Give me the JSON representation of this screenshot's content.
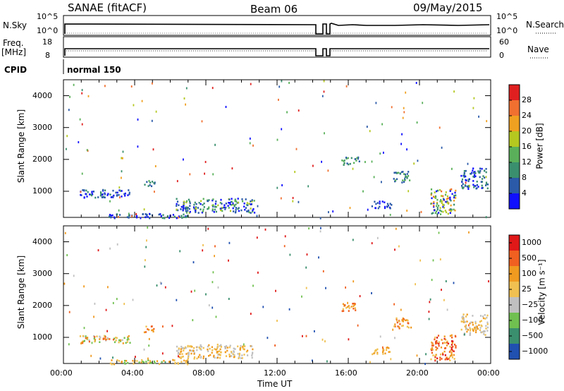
{
  "header": {
    "station": "SANAE (fitACF)",
    "beam": "Beam 06",
    "date": "09/May/2015"
  },
  "panels": {
    "nsky": {
      "label": "N.Sky",
      "ticks_left": [
        "10^5",
        "10^0"
      ],
      "ticks_right": [
        "10^5",
        "10^0"
      ],
      "right_label": "N.Search"
    },
    "freq": {
      "label_top": "Freq.",
      "label_unit": "[MHz]",
      "ticks_left": [
        "18",
        "8"
      ],
      "ticks_right": [
        "60",
        "0"
      ],
      "right_label": "Nave"
    },
    "cpid": {
      "label": "CPID",
      "value": "normal 150"
    }
  },
  "colors": {
    "power_scale": [
      "#1010ff",
      "#2a5aa8",
      "#3a8f6e",
      "#5ab05a",
      "#b4c820",
      "#f0a020",
      "#f07030",
      "#e02020"
    ],
    "velocity_scale": [
      "#e01818",
      "#f06020",
      "#f09a20",
      "#f0c050",
      "#c0c0c0",
      "#70c050",
      "#3a8f6e",
      "#2050b0"
    ]
  },
  "chart_data": [
    {
      "type": "heatmap",
      "name": "power",
      "ylabel": "Slant Range [km]",
      "y_ticks": [
        "1000",
        "2000",
        "3000",
        "4000"
      ],
      "ylim": [
        180,
        4500
      ],
      "xlim_hours": [
        0,
        24
      ],
      "colorbar_label": "Power [dB]",
      "colorbar_ticks": [
        "4",
        "8",
        "12",
        "16",
        "20",
        "24",
        "28"
      ],
      "regions": [
        {
          "t0": 0.9,
          "t1": 3.7,
          "r0": 820,
          "r1": 1080,
          "levels": [
            0,
            1,
            0,
            2,
            1
          ]
        },
        {
          "t0": 4.5,
          "t1": 5.1,
          "r0": 1150,
          "r1": 1380,
          "levels": [
            1,
            2,
            3
          ]
        },
        {
          "t0": 6.3,
          "t1": 10.7,
          "r0": 350,
          "r1": 800,
          "levels": [
            0,
            1,
            1,
            2,
            3,
            4
          ]
        },
        {
          "t0": 2.5,
          "t1": 7.0,
          "r0": 180,
          "r1": 320,
          "levels": [
            0,
            1,
            2
          ]
        },
        {
          "t0": 15.6,
          "t1": 16.6,
          "r0": 1850,
          "r1": 2100,
          "levels": [
            1,
            2,
            3
          ]
        },
        {
          "t0": 18.5,
          "t1": 19.5,
          "r0": 1300,
          "r1": 1650,
          "levels": [
            1,
            2,
            3
          ]
        },
        {
          "t0": 20.6,
          "t1": 22.0,
          "r0": 300,
          "r1": 1100,
          "levels": [
            0,
            3,
            4,
            5,
            6,
            2
          ]
        },
        {
          "t0": 22.3,
          "t1": 23.8,
          "r0": 1100,
          "r1": 1750,
          "levels": [
            0,
            1,
            2
          ]
        },
        {
          "t0": 17.3,
          "t1": 18.4,
          "r0": 480,
          "r1": 720,
          "levels": [
            0,
            1
          ]
        }
      ]
    },
    {
      "type": "heatmap",
      "name": "velocity",
      "ylabel": "Slant Range [km]",
      "y_ticks": [
        "1000",
        "2000",
        "3000",
        "4000"
      ],
      "ylim": [
        180,
        4500
      ],
      "xlim_hours": [
        0,
        24
      ],
      "colorbar_label": "Velocity [m s⁻¹]",
      "colorbar_ticks": [
        "1000",
        "500",
        "100",
        "25",
        "−25",
        "−100",
        "−500",
        "−1000"
      ],
      "x_ticks": [
        "00:00",
        "04:00",
        "08:00",
        "12:00",
        "16:00",
        "20:00",
        "00:00"
      ],
      "xlabel": "Time UT",
      "regions": [
        {
          "t0": 0.9,
          "t1": 3.7,
          "r0": 820,
          "r1": 1080,
          "levels": [
            2,
            3,
            5,
            4,
            1
          ]
        },
        {
          "t0": 4.5,
          "t1": 5.1,
          "r0": 1150,
          "r1": 1380,
          "levels": [
            1,
            2,
            3
          ]
        },
        {
          "t0": 6.3,
          "t1": 10.7,
          "r0": 350,
          "r1": 800,
          "levels": [
            3,
            4,
            3,
            2,
            4
          ]
        },
        {
          "t0": 2.5,
          "t1": 7.0,
          "r0": 180,
          "r1": 320,
          "levels": [
            3,
            5,
            2
          ]
        },
        {
          "t0": 15.6,
          "t1": 16.6,
          "r0": 1850,
          "r1": 2100,
          "levels": [
            2,
            3,
            1
          ]
        },
        {
          "t0": 18.5,
          "t1": 19.5,
          "r0": 1300,
          "r1": 1650,
          "levels": [
            1,
            2,
            3
          ]
        },
        {
          "t0": 20.6,
          "t1": 22.0,
          "r0": 300,
          "r1": 1100,
          "levels": [
            0,
            1,
            2,
            3,
            1
          ]
        },
        {
          "t0": 22.3,
          "t1": 23.8,
          "r0": 1100,
          "r1": 1750,
          "levels": [
            2,
            3,
            4
          ]
        },
        {
          "t0": 17.3,
          "t1": 18.4,
          "r0": 480,
          "r1": 720,
          "levels": [
            2,
            3
          ]
        }
      ]
    }
  ]
}
